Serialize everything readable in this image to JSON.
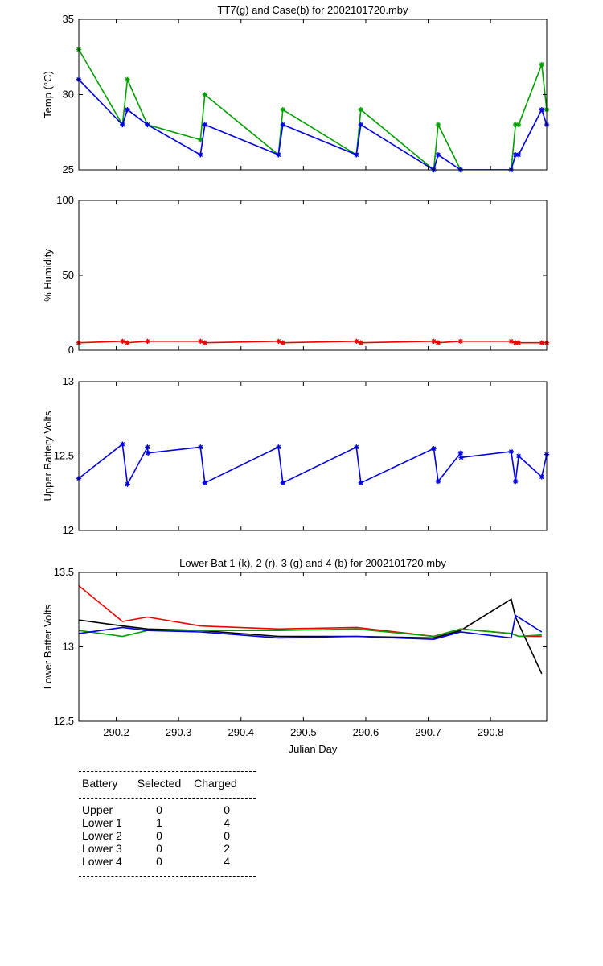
{
  "chart_data": [
    {
      "type": "line",
      "title": "TT7(g) and Case(b) for 2002101720.mby",
      "xlabel": "",
      "ylabel": "Temp  (°C)",
      "xlim": [
        290.14,
        290.89
      ],
      "ylim": [
        25,
        35
      ],
      "yticks": [
        "25",
        "30",
        "35"
      ],
      "series": [
        {
          "name": "TT7",
          "color": "#00a000",
          "marker": "*",
          "x": [
            290.14,
            290.21,
            290.218,
            290.25,
            290.335,
            290.342,
            290.46,
            290.467,
            290.585,
            290.592,
            290.709,
            290.716,
            290.752,
            290.833,
            290.84,
            290.845,
            290.882,
            290.89
          ],
          "y": [
            33,
            28,
            31,
            28,
            27,
            30,
            26,
            29,
            26,
            29,
            25,
            28,
            25,
            25,
            28,
            28,
            32,
            29
          ]
        },
        {
          "name": "Case",
          "color": "#0000e0",
          "marker": "*",
          "x": [
            290.14,
            290.21,
            290.218,
            290.25,
            290.335,
            290.342,
            290.46,
            290.467,
            290.585,
            290.592,
            290.709,
            290.716,
            290.752,
            290.833,
            290.84,
            290.845,
            290.882,
            290.89
          ],
          "y": [
            31,
            28,
            29,
            28,
            26,
            28,
            26,
            28,
            26,
            28,
            25,
            26,
            25,
            25,
            26,
            26,
            29,
            28
          ]
        }
      ]
    },
    {
      "type": "line",
      "title": "",
      "xlabel": "",
      "ylabel": "% Humidity",
      "xlim": [
        290.14,
        290.89
      ],
      "ylim": [
        0,
        100
      ],
      "yticks": [
        "0",
        "50",
        "100"
      ],
      "series": [
        {
          "name": "Humidity",
          "color": "#ee0000",
          "marker": "*",
          "x": [
            290.14,
            290.21,
            290.218,
            290.25,
            290.335,
            290.342,
            290.46,
            290.467,
            290.585,
            290.592,
            290.709,
            290.716,
            290.752,
            290.833,
            290.84,
            290.845,
            290.882,
            290.89
          ],
          "y": [
            5,
            6,
            5,
            6,
            6,
            5,
            6,
            5,
            6,
            5,
            6,
            5,
            6,
            6,
            5,
            5,
            5,
            5
          ]
        }
      ]
    },
    {
      "type": "line",
      "title": "",
      "xlabel": "",
      "ylabel": "Upper Battery Volts",
      "xlim": [
        290.14,
        290.89
      ],
      "ylim": [
        12,
        13
      ],
      "yticks": [
        "12",
        "12.5",
        "13"
      ],
      "series": [
        {
          "name": "Upper",
          "color": "#0000e0",
          "marker": "*",
          "x": [
            290.14,
            290.21,
            290.218,
            290.25,
            290.251,
            290.335,
            290.342,
            290.46,
            290.467,
            290.585,
            290.592,
            290.709,
            290.716,
            290.752,
            290.753,
            290.833,
            290.84,
            290.845,
            290.882,
            290.89
          ],
          "y": [
            12.35,
            12.58,
            12.31,
            12.56,
            12.52,
            12.56,
            12.32,
            12.56,
            12.32,
            12.56,
            12.32,
            12.55,
            12.33,
            12.52,
            12.49,
            12.53,
            12.33,
            12.5,
            12.36,
            12.51
          ]
        }
      ]
    },
    {
      "type": "line",
      "title": "Lower Bat 1 (k), 2 (r), 3 (g) and 4 (b) for 2002101720.mby",
      "xlabel": "Julian Day",
      "ylabel": "Lower Batter Volts",
      "xlim": [
        290.14,
        290.89
      ],
      "ylim": [
        12.5,
        13.5
      ],
      "yticks": [
        "12.5",
        "13",
        "13.5"
      ],
      "xticks": [
        "290.2",
        "290.3",
        "290.4",
        "290.5",
        "290.6",
        "290.7",
        "290.8"
      ],
      "series": [
        {
          "name": "Lower 1",
          "color": "#000000",
          "x": [
            290.14,
            290.21,
            290.25,
            290.335,
            290.46,
            290.585,
            290.709,
            290.752,
            290.833,
            290.84,
            290.882
          ],
          "y": [
            13.18,
            13.14,
            13.12,
            13.11,
            13.07,
            13.07,
            13.06,
            13.11,
            13.32,
            13.2,
            12.82
          ]
        },
        {
          "name": "Lower 2",
          "color": "#ee0000",
          "x": [
            290.14,
            290.21,
            290.25,
            290.335,
            290.46,
            290.585,
            290.709,
            290.752,
            290.833,
            290.845,
            290.882
          ],
          "y": [
            13.41,
            13.17,
            13.2,
            13.14,
            13.12,
            13.13,
            13.07,
            13.12,
            13.09,
            13.07,
            13.07
          ]
        },
        {
          "name": "Lower 3",
          "color": "#00a000",
          "x": [
            290.14,
            290.21,
            290.25,
            290.335,
            290.46,
            290.585,
            290.709,
            290.752,
            290.833,
            290.845,
            290.882
          ],
          "y": [
            13.11,
            13.07,
            13.11,
            13.11,
            13.11,
            13.12,
            13.07,
            13.12,
            13.09,
            13.07,
            13.08
          ]
        },
        {
          "name": "Lower 4",
          "color": "#0000e0",
          "x": [
            290.14,
            290.21,
            290.25,
            290.335,
            290.46,
            290.585,
            290.709,
            290.752,
            290.833,
            290.84,
            290.882
          ],
          "y": [
            13.09,
            13.13,
            13.11,
            13.1,
            13.06,
            13.07,
            13.05,
            13.1,
            13.06,
            13.21,
            13.1
          ]
        }
      ]
    }
  ],
  "battery_table": {
    "headers": [
      "Battery",
      "Selected",
      "Charged"
    ],
    "rows": [
      {
        "battery": "Upper",
        "selected": "0",
        "charged": "0"
      },
      {
        "battery": "Lower 1",
        "selected": "1",
        "charged": "4"
      },
      {
        "battery": "Lower 2",
        "selected": "0",
        "charged": "0"
      },
      {
        "battery": "Lower 3",
        "selected": "0",
        "charged": "2"
      },
      {
        "battery": "Lower 4",
        "selected": "0",
        "charged": "4"
      }
    ]
  }
}
